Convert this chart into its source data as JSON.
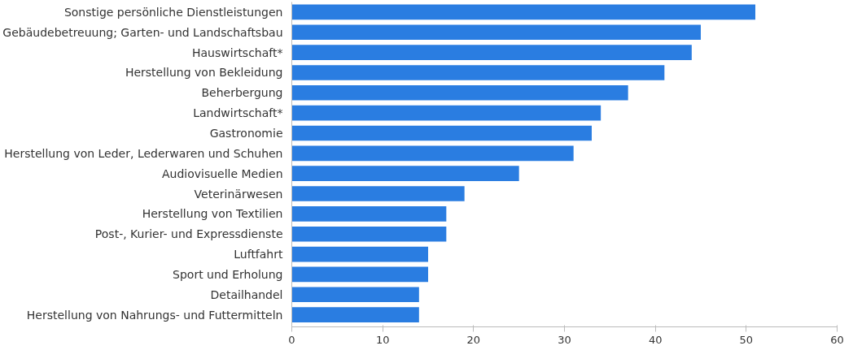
{
  "chart_data": {
    "type": "bar",
    "orientation": "horizontal",
    "categories": [
      "Sonstige persönliche Dienstleistungen",
      "Gebäudebetreuung; Garten- und Landschaftsbau",
      "Hauswirtschaft*",
      "Herstellung von Bekleidung",
      "Beherbergung",
      "Landwirtschaft*",
      "Gastronomie",
      "Herstellung von Leder, Lederwaren und Schuhen",
      "Audiovisuelle Medien",
      "Veterinärwesen",
      "Herstellung von Textilien",
      "Post-, Kurier- und Expressdienste",
      "Luftfahrt",
      "Sport und Erholung",
      "Detailhandel",
      "Herstellung von Nahrungs- und Futtermitteln"
    ],
    "values": [
      51,
      45,
      44,
      41,
      37,
      34,
      33,
      31,
      25,
      19,
      17,
      17,
      15,
      15,
      14,
      14
    ],
    "color": "#2a7de1",
    "xlim": [
      0,
      60
    ],
    "xticks": [
      0,
      10,
      20,
      30,
      40,
      50,
      60
    ],
    "grid": false
  }
}
